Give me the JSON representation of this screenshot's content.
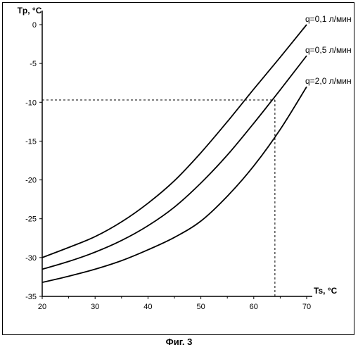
{
  "chart_data": {
    "type": "line",
    "xlabel": "Ts, °C",
    "ylabel": "Tp, °C",
    "xlim": [
      20,
      70
    ],
    "ylim": [
      -35,
      0
    ],
    "xticks": [
      20,
      30,
      40,
      50,
      60,
      70
    ],
    "yticks": [
      0,
      -5,
      -10,
      -15,
      -20,
      -25,
      -30,
      -35
    ],
    "grid": false,
    "series": [
      {
        "name": "q=0,1 л/мин",
        "x": [
          20,
          25,
          30,
          35,
          40,
          45,
          50,
          55,
          60,
          65,
          70
        ],
        "y": [
          -30.0,
          -28.7,
          -27.3,
          -25.4,
          -23.0,
          -20.1,
          -16.5,
          -12.5,
          -8.3,
          -4.2,
          0.0
        ]
      },
      {
        "name": "q=0,5 л/мин",
        "x": [
          20,
          25,
          30,
          35,
          40,
          45,
          50,
          55,
          60,
          65,
          70
        ],
        "y": [
          -31.5,
          -30.5,
          -29.3,
          -27.8,
          -25.9,
          -23.5,
          -20.4,
          -16.8,
          -12.7,
          -8.4,
          -4.0
        ]
      },
      {
        "name": "q=2,0 л/мин",
        "x": [
          20,
          25,
          30,
          35,
          40,
          45,
          50,
          55,
          60,
          65,
          70
        ],
        "y": [
          -33.2,
          -32.4,
          -31.5,
          -30.4,
          -29.0,
          -27.4,
          -25.3,
          -22.1,
          -18.2,
          -13.5,
          -8.0
        ]
      }
    ],
    "reference_lines": {
      "y": -9.7,
      "x": 64
    }
  },
  "caption": "Фиг. 3"
}
